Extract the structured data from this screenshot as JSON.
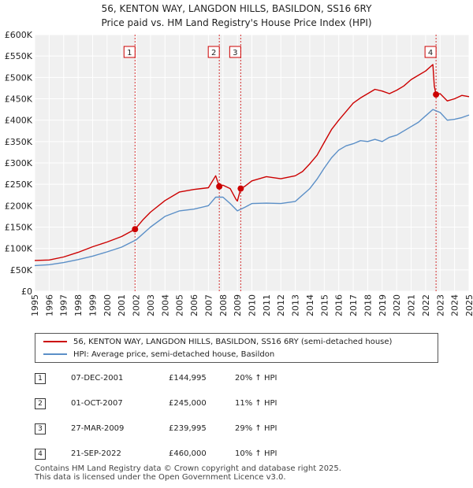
{
  "chart_data": {
    "type": "line",
    "title": "56, KENTON WAY, LANGDON HILLS, BASILDON, SS16 6RY",
    "subtitle": "Price paid vs. HM Land Registry's House Price Index (HPI)",
    "xlabel": "",
    "ylabel": "",
    "xlim": [
      1995,
      2025
    ],
    "ylim": [
      0,
      600000
    ],
    "y_ticks": [
      0,
      50000,
      100000,
      150000,
      200000,
      250000,
      300000,
      350000,
      400000,
      450000,
      500000,
      550000,
      600000
    ],
    "y_tick_labels": [
      "£0",
      "£50K",
      "£100K",
      "£150K",
      "£200K",
      "£250K",
      "£300K",
      "£350K",
      "£400K",
      "£450K",
      "£500K",
      "£550K",
      "£600K"
    ],
    "x_ticks": [
      "1995",
      "1996",
      "1997",
      "1998",
      "1999",
      "2000",
      "2001",
      "2002",
      "2003",
      "2004",
      "2005",
      "2006",
      "2007",
      "2008",
      "2009",
      "2010",
      "2011",
      "2012",
      "2013",
      "2014",
      "2015",
      "2016",
      "2017",
      "2018",
      "2019",
      "2020",
      "2021",
      "2022",
      "2023",
      "2024",
      "2025"
    ],
    "grid": true,
    "series": [
      {
        "name": "56, KENTON WAY, LANGDON HILLS, BASILDON, SS16 6RY (semi-detached house)",
        "color": "#cc0000",
        "x": [
          1995.0,
          1996.0,
          1997.0,
          1998.0,
          1999.0,
          2000.0,
          2001.0,
          2001.93,
          2002.5,
          2003.0,
          2004.0,
          2005.0,
          2006.0,
          2007.0,
          2007.5,
          2007.75,
          2008.0,
          2008.5,
          2008.9,
          2009.0,
          2009.23,
          2009.5,
          2010.0,
          2011.0,
          2012.0,
          2013.0,
          2013.5,
          2014.0,
          2014.5,
          2015.0,
          2015.5,
          2016.0,
          2016.5,
          2017.0,
          2017.5,
          2018.0,
          2018.5,
          2019.0,
          2019.5,
          2020.0,
          2020.5,
          2021.0,
          2021.5,
          2022.0,
          2022.5,
          2022.6,
          2022.72,
          2023.0,
          2023.5,
          2024.0,
          2024.5,
          2025.0
        ],
        "y": [
          72000,
          73000,
          80000,
          91000,
          104000,
          115000,
          128000,
          144995,
          168000,
          185000,
          212000,
          232000,
          238000,
          242000,
          270000,
          245000,
          248000,
          240000,
          215000,
          211000,
          239995,
          245000,
          258000,
          268000,
          263000,
          270000,
          280000,
          298000,
          318000,
          348000,
          378000,
          400000,
          420000,
          440000,
          452000,
          462000,
          472000,
          468000,
          462000,
          470000,
          480000,
          495000,
          505000,
          515000,
          530000,
          480000,
          460000,
          462000,
          445000,
          450000,
          458000,
          455000
        ]
      },
      {
        "name": "HPI: Average price, semi-detached house, Basildon",
        "color": "#5b8fc7",
        "x": [
          1995.0,
          1996.0,
          1997.0,
          1998.0,
          1999.0,
          2000.0,
          2001.0,
          2002.0,
          2003.0,
          2004.0,
          2005.0,
          2006.0,
          2007.0,
          2007.5,
          2008.0,
          2008.5,
          2009.0,
          2009.5,
          2010.0,
          2011.0,
          2012.0,
          2013.0,
          2014.0,
          2014.5,
          2015.0,
          2015.5,
          2016.0,
          2016.5,
          2017.0,
          2017.5,
          2018.0,
          2018.5,
          2019.0,
          2019.5,
          2020.0,
          2020.5,
          2021.0,
          2021.5,
          2022.0,
          2022.5,
          2023.0,
          2023.5,
          2024.0,
          2024.5,
          2025.0
        ],
        "y": [
          60000,
          62000,
          67000,
          74000,
          82000,
          92000,
          103000,
          120000,
          150000,
          175000,
          188000,
          192000,
          200000,
          220000,
          220000,
          205000,
          188000,
          196000,
          205000,
          206000,
          205000,
          210000,
          240000,
          262000,
          288000,
          312000,
          330000,
          340000,
          345000,
          352000,
          350000,
          355000,
          350000,
          360000,
          365000,
          375000,
          385000,
          395000,
          410000,
          425000,
          418000,
          400000,
          402000,
          406000,
          412000
        ]
      }
    ],
    "markers": [
      {
        "label": "1",
        "x": 2001.93,
        "y": 144995
      },
      {
        "label": "2",
        "x": 2007.75,
        "y": 245000
      },
      {
        "label": "3",
        "x": 2009.23,
        "y": 239995
      },
      {
        "label": "4",
        "x": 2022.72,
        "y": 460000
      }
    ],
    "legend_position": "bottom"
  },
  "legend": {
    "property": "56, KENTON WAY, LANGDON HILLS, BASILDON, SS16 6RY (semi-detached house)",
    "hpi": "HPI: Average price, semi-detached house, Basildon"
  },
  "sales": [
    {
      "num": "1",
      "date": "07-DEC-2001",
      "price": "£144,995",
      "hpi": "20% ↑ HPI"
    },
    {
      "num": "2",
      "date": "01-OCT-2007",
      "price": "£245,000",
      "hpi": "11% ↑ HPI"
    },
    {
      "num": "3",
      "date": "27-MAR-2009",
      "price": "£239,995",
      "hpi": "29% ↑ HPI"
    },
    {
      "num": "4",
      "date": "21-SEP-2022",
      "price": "£460,000",
      "hpi": "10% ↑ HPI"
    }
  ],
  "footer": {
    "line1": "Contains HM Land Registry data © Crown copyright and database right 2025.",
    "line2": "This data is licensed under the Open Government Licence v3.0."
  }
}
